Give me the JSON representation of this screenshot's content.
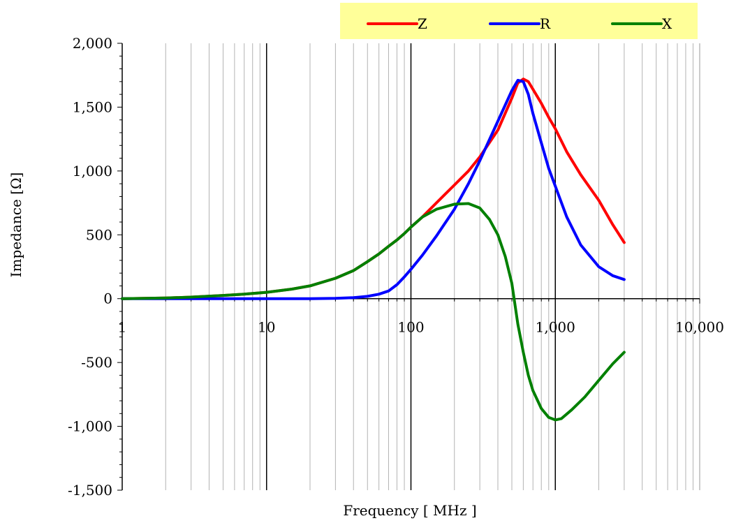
{
  "chart_data": {
    "type": "line",
    "xlabel": "Frequency [ MHz ]",
    "ylabel": "Impedance [Ω]",
    "x_scale": "log",
    "xlim": [
      1,
      10000
    ],
    "ylim": [
      -1500,
      2000
    ],
    "x_ticks": [
      {
        "value": 1,
        "label": "1"
      },
      {
        "value": 10,
        "label": "10"
      },
      {
        "value": 100,
        "label": "100"
      },
      {
        "value": 1000,
        "label": "1,000"
      },
      {
        "value": 10000,
        "label": "10,000"
      }
    ],
    "y_ticks": [
      {
        "value": 2000,
        "label": "2,000"
      },
      {
        "value": 1500,
        "label": "1,500"
      },
      {
        "value": 1000,
        "label": "1,000"
      },
      {
        "value": 500,
        "label": "500"
      },
      {
        "value": 0,
        "label": "0"
      },
      {
        "value": -500,
        "label": "-500"
      },
      {
        "value": -1000,
        "label": "-1,000"
      },
      {
        "value": -1500,
        "label": "-1,500"
      }
    ],
    "grid": true,
    "legend_position": "top-right",
    "legend_background": "#FFFF99",
    "series": [
      {
        "name": "Z",
        "color": "#FF0000",
        "points": [
          [
            1,
            0
          ],
          [
            2,
            5
          ],
          [
            3,
            12
          ],
          [
            5,
            25
          ],
          [
            7,
            35
          ],
          [
            10,
            50
          ],
          [
            15,
            75
          ],
          [
            20,
            100
          ],
          [
            30,
            160
          ],
          [
            40,
            220
          ],
          [
            50,
            290
          ],
          [
            60,
            350
          ],
          [
            70,
            410
          ],
          [
            80,
            460
          ],
          [
            90,
            510
          ],
          [
            100,
            560
          ],
          [
            120,
            640
          ],
          [
            150,
            750
          ],
          [
            200,
            890
          ],
          [
            250,
            1000
          ],
          [
            300,
            1110
          ],
          [
            400,
            1320
          ],
          [
            500,
            1570
          ],
          [
            550,
            1690
          ],
          [
            600,
            1720
          ],
          [
            650,
            1700
          ],
          [
            700,
            1640
          ],
          [
            800,
            1530
          ],
          [
            900,
            1420
          ],
          [
            1000,
            1330
          ],
          [
            1200,
            1150
          ],
          [
            1500,
            970
          ],
          [
            2000,
            770
          ],
          [
            2500,
            580
          ],
          [
            3000,
            440
          ]
        ]
      },
      {
        "name": "R",
        "color": "#0000FF",
        "points": [
          [
            1,
            0
          ],
          [
            10,
            0
          ],
          [
            20,
            0
          ],
          [
            30,
            2
          ],
          [
            40,
            8
          ],
          [
            50,
            18
          ],
          [
            60,
            35
          ],
          [
            70,
            60
          ],
          [
            80,
            110
          ],
          [
            90,
            170
          ],
          [
            100,
            230
          ],
          [
            120,
            340
          ],
          [
            150,
            490
          ],
          [
            200,
            700
          ],
          [
            250,
            900
          ],
          [
            300,
            1080
          ],
          [
            400,
            1390
          ],
          [
            500,
            1630
          ],
          [
            550,
            1710
          ],
          [
            600,
            1700
          ],
          [
            650,
            1600
          ],
          [
            700,
            1450
          ],
          [
            800,
            1220
          ],
          [
            900,
            1020
          ],
          [
            1000,
            880
          ],
          [
            1200,
            640
          ],
          [
            1500,
            420
          ],
          [
            2000,
            250
          ],
          [
            2500,
            180
          ],
          [
            3000,
            150
          ]
        ]
      },
      {
        "name": "X",
        "color": "#008000",
        "points": [
          [
            1,
            0
          ],
          [
            2,
            5
          ],
          [
            3,
            12
          ],
          [
            5,
            25
          ],
          [
            7,
            35
          ],
          [
            10,
            50
          ],
          [
            15,
            75
          ],
          [
            20,
            100
          ],
          [
            30,
            160
          ],
          [
            40,
            220
          ],
          [
            50,
            290
          ],
          [
            60,
            350
          ],
          [
            70,
            410
          ],
          [
            80,
            460
          ],
          [
            90,
            510
          ],
          [
            100,
            560
          ],
          [
            120,
            640
          ],
          [
            150,
            700
          ],
          [
            200,
            740
          ],
          [
            250,
            745
          ],
          [
            300,
            710
          ],
          [
            350,
            620
          ],
          [
            400,
            500
          ],
          [
            450,
            330
          ],
          [
            500,
            120
          ],
          [
            550,
            -200
          ],
          [
            600,
            -420
          ],
          [
            650,
            -600
          ],
          [
            700,
            -720
          ],
          [
            800,
            -860
          ],
          [
            900,
            -930
          ],
          [
            1000,
            -950
          ],
          [
            1100,
            -940
          ],
          [
            1300,
            -870
          ],
          [
            1600,
            -770
          ],
          [
            2000,
            -640
          ],
          [
            2500,
            -510
          ],
          [
            3000,
            -420
          ]
        ]
      }
    ]
  }
}
